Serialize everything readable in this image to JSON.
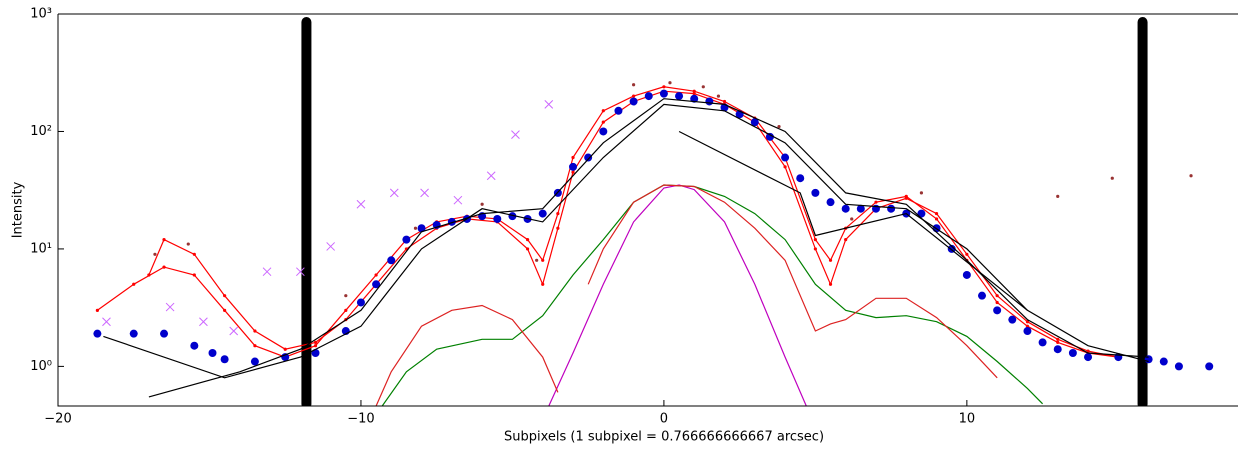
{
  "chart_data": {
    "type": "line",
    "xlabel": "Subpixels (1 subpixel =  0.766666666667 arcsec)",
    "ylabel": "Intensity",
    "xlim": [
      -20,
      18.95
    ],
    "ylim": [
      0.46,
      1000
    ],
    "yscale": "log",
    "xticks": [
      {
        "value": -20,
        "label": "−20"
      },
      {
        "value": -10,
        "label": "−10"
      },
      0,
      10
    ],
    "yticks": [
      {
        "value": 1,
        "label": "10⁰"
      },
      {
        "value": 10,
        "label": "10¹"
      },
      {
        "value": 100,
        "label": "10²"
      },
      {
        "value": 1000,
        "label": "10³"
      }
    ],
    "vlines": [
      {
        "x": -11.8,
        "color": "#000000"
      },
      {
        "x": 15.8,
        "color": "#000000"
      }
    ],
    "series": [
      {
        "color": "#ff0000",
        "marker": ".",
        "line": true,
        "x": [
          -18.7,
          -17.5,
          -16.5,
          -15.5,
          -14.5,
          -13.5,
          -12.5,
          -11.5,
          -10.5,
          -9.5,
          -8.5,
          -7.5,
          -6.5,
          -5.5,
          -4.5,
          -4,
          -3.5,
          -3,
          -2,
          -1,
          0,
          1,
          2,
          3,
          4,
          5,
          5.5,
          6,
          7,
          8,
          9,
          10,
          11,
          12,
          13,
          14,
          15
        ],
        "values": [
          3,
          5,
          7,
          6,
          3,
          1.5,
          1.2,
          1.5,
          3,
          6,
          12,
          17,
          19,
          18,
          12,
          8,
          20,
          60,
          150,
          200,
          240,
          220,
          180,
          130,
          60,
          12,
          8,
          15,
          25,
          28,
          18,
          8,
          3.5,
          2.2,
          1.6,
          1.3,
          1.2
        ]
      },
      {
        "color": "#ff0000",
        "marker": ".",
        "line": true,
        "x": [
          -17,
          -16.5,
          -15.5,
          -14.5,
          -13.5,
          -12.5,
          -11.5,
          -10.5,
          -9.5,
          -8.5,
          -7.5,
          -6.5,
          -5.5,
          -4.5,
          -4,
          -3.5,
          -3,
          -2,
          -1,
          0,
          1,
          2,
          3,
          4,
          5,
          5.5,
          6,
          7,
          8,
          9,
          10,
          11,
          12,
          13,
          14,
          15
        ],
        "values": [
          6,
          12,
          9,
          4,
          2,
          1.4,
          1.6,
          2.5,
          5,
          10,
          15,
          18,
          17,
          10,
          5,
          15,
          45,
          120,
          180,
          220,
          210,
          170,
          120,
          50,
          10,
          5,
          12,
          22,
          27,
          20,
          9,
          4,
          2.4,
          1.7,
          1.35,
          1.2
        ]
      },
      {
        "color": "#0000cc",
        "marker": "o",
        "line": false,
        "x": [
          -18.7,
          -17.5,
          -16.5,
          -15.5,
          -14.9,
          -14.5,
          -13.5,
          -12.5,
          -11.5,
          -10.5,
          -10,
          -9.5,
          -9,
          -8.5,
          -8,
          -7.5,
          -7,
          -6.5,
          -6,
          -5.5,
          -5,
          -4.5,
          -4,
          -3.5,
          -3,
          -2.5,
          -2,
          -1.5,
          -1,
          -0.5,
          0,
          0.5,
          1,
          1.5,
          2,
          2.5,
          3,
          3.5,
          4,
          4.5,
          5,
          5.5,
          6,
          6.5,
          7,
          7.5,
          8,
          8.5,
          9,
          9.5,
          10,
          10.5,
          11,
          11.5,
          12,
          12.5,
          13,
          13.5,
          14,
          15,
          16,
          16.5,
          17,
          18
        ],
        "values": [
          1.9,
          1.9,
          1.9,
          1.5,
          1.3,
          1.15,
          1.1,
          1.2,
          1.3,
          2,
          3.5,
          5,
          8,
          12,
          15,
          16,
          17,
          18,
          19,
          18,
          19,
          18,
          20,
          30,
          50,
          60,
          100,
          150,
          180,
          200,
          210,
          200,
          190,
          180,
          160,
          140,
          120,
          90,
          60,
          40,
          30,
          25,
          22,
          22,
          22,
          22,
          20,
          20,
          15,
          10,
          6,
          4,
          3,
          2.5,
          2,
          1.6,
          1.4,
          1.3,
          1.2,
          1.2,
          1.15,
          1.1,
          1,
          1
        ]
      },
      {
        "color": "#000000",
        "marker": "none",
        "line": true,
        "x": [
          -17,
          -14,
          -12,
          -10,
          -8,
          -6,
          -4,
          -2,
          0,
          2,
          4,
          6,
          8,
          10,
          12,
          14,
          16
        ],
        "values": [
          0.55,
          0.9,
          1.4,
          3,
          14,
          20,
          22,
          80,
          190,
          170,
          100,
          30,
          24,
          8,
          2.5,
          1.3,
          1.2
        ]
      },
      {
        "color": "#000000",
        "marker": "none",
        "line": true,
        "x": [
          -18.5,
          -14.5,
          -12,
          -10,
          -8,
          -6,
          -4,
          -2,
          0,
          2,
          4,
          6,
          8,
          10,
          12,
          14,
          16
        ],
        "values": [
          1.8,
          0.8,
          1.2,
          2.2,
          10,
          22,
          17,
          60,
          170,
          150,
          80,
          24,
          22,
          10,
          3,
          1.5,
          1.1
        ]
      },
      {
        "color": "#000000",
        "marker": "none",
        "line": true,
        "x": [
          0.5,
          4.5,
          5,
          8,
          12
        ],
        "values": [
          100,
          30,
          13,
          20,
          3
        ]
      },
      {
        "color": "#008000",
        "marker": "none",
        "line": true,
        "x": [
          -9.3,
          -8.5,
          -7.5,
          -6,
          -5,
          -4,
          -3,
          -2,
          -1,
          0,
          1,
          2,
          3,
          4,
          5,
          6,
          7,
          8,
          9,
          10,
          11,
          12,
          12.5
        ],
        "values": [
          0.46,
          0.9,
          1.4,
          1.7,
          1.7,
          2.7,
          6,
          12,
          25,
          35,
          34,
          28,
          20,
          12,
          5,
          3,
          2.6,
          2.7,
          2.4,
          1.8,
          1.1,
          0.65,
          0.48
        ]
      },
      {
        "color": "#bf00bf",
        "marker": "none",
        "line": true,
        "x": [
          -3.8,
          -3,
          -2,
          -1,
          0,
          0.5,
          1,
          2,
          3,
          4,
          4.7
        ],
        "values": [
          0.46,
          1.3,
          5,
          17,
          33,
          35,
          32,
          17,
          5,
          1.2,
          0.46
        ]
      },
      {
        "color": "#dd2222",
        "marker": "none",
        "line": true,
        "x": [
          -9.5,
          -9,
          -8,
          -7,
          -6,
          -5,
          -4,
          -3.5,
          -3,
          -2.5,
          -2,
          -1,
          0,
          1,
          2,
          3,
          4,
          5,
          5.5,
          6,
          7,
          8,
          9,
          10,
          11
        ],
        "values": [
          0.46,
          0.9,
          2.2,
          3,
          3.3,
          2.5,
          1.2,
          0.6,
          null,
          5,
          10,
          25,
          35,
          34,
          25,
          15,
          8,
          2,
          2.3,
          2.5,
          3.8,
          3.8,
          2.6,
          1.5,
          0.8
        ]
      },
      {
        "color": "#cc66ff",
        "marker": "x",
        "line": false,
        "x": [
          -18.4,
          -16.3,
          -15.2,
          -14.2,
          -13.1,
          -12,
          -11,
          -10,
          -8.9,
          -7.9,
          -6.8,
          -5.7,
          -4.9,
          -3.8
        ],
        "values": [
          2.4,
          3.2,
          2.4,
          2,
          6.4,
          6.4,
          10.5,
          24,
          30,
          30,
          26,
          42,
          94,
          170
        ]
      },
      {
        "color": "#993333",
        "marker": ".",
        "line": false,
        "x": [
          -16.8,
          -15.7,
          -10.5,
          -8.2,
          -6,
          -4.2,
          -1,
          0.2,
          1.3,
          1.8,
          3.8,
          6.2,
          8.5,
          13,
          14.8,
          17.4
        ],
        "values": [
          9,
          11,
          4,
          15,
          24,
          8,
          250,
          260,
          240,
          200,
          110,
          18,
          30,
          28,
          40,
          42
        ]
      }
    ]
  }
}
